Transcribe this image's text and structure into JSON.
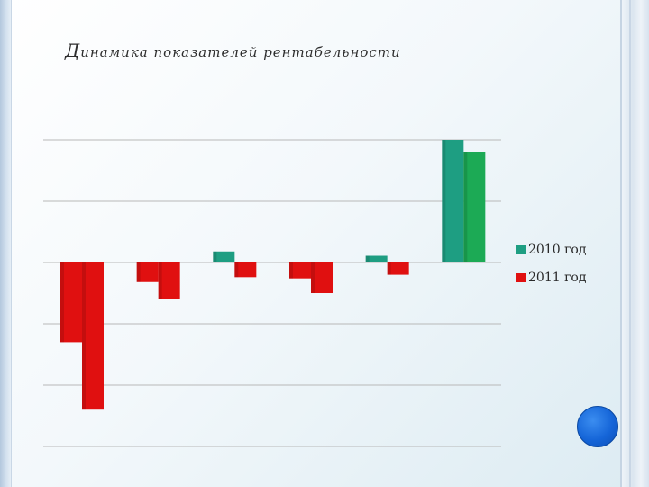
{
  "page": {
    "title_first": "Д",
    "title_rest": "инамика показателей рентабельности"
  },
  "colors": {
    "series_2010": "#1e9e82",
    "series_2011": "#e01010",
    "series_2010_negative": "#e01010",
    "series_2011_highlight": "#1caa55",
    "gridline": "#b8b8b8"
  },
  "chart_data": {
    "type": "bar",
    "title": "Динамика показателей рентабельности",
    "categories": [
      "",
      "",
      "",
      "",
      "",
      ""
    ],
    "series": [
      {
        "name": "2010 год",
        "values": [
          -13,
          -3.2,
          1.8,
          -2.6,
          1.1,
          20
        ]
      },
      {
        "name": "2011 год",
        "values": [
          -24,
          -6,
          -2.4,
          -5,
          -2,
          18
        ]
      }
    ],
    "ylim": [
      -30,
      20
    ],
    "ytick_step": 10,
    "grid": true,
    "xlabel": "",
    "ylabel": "",
    "legend_position": "right"
  },
  "legend": {
    "items": [
      {
        "label": "2010 год",
        "color": "#1e9e82"
      },
      {
        "label": "2011 год",
        "color": "#e01010"
      }
    ]
  }
}
